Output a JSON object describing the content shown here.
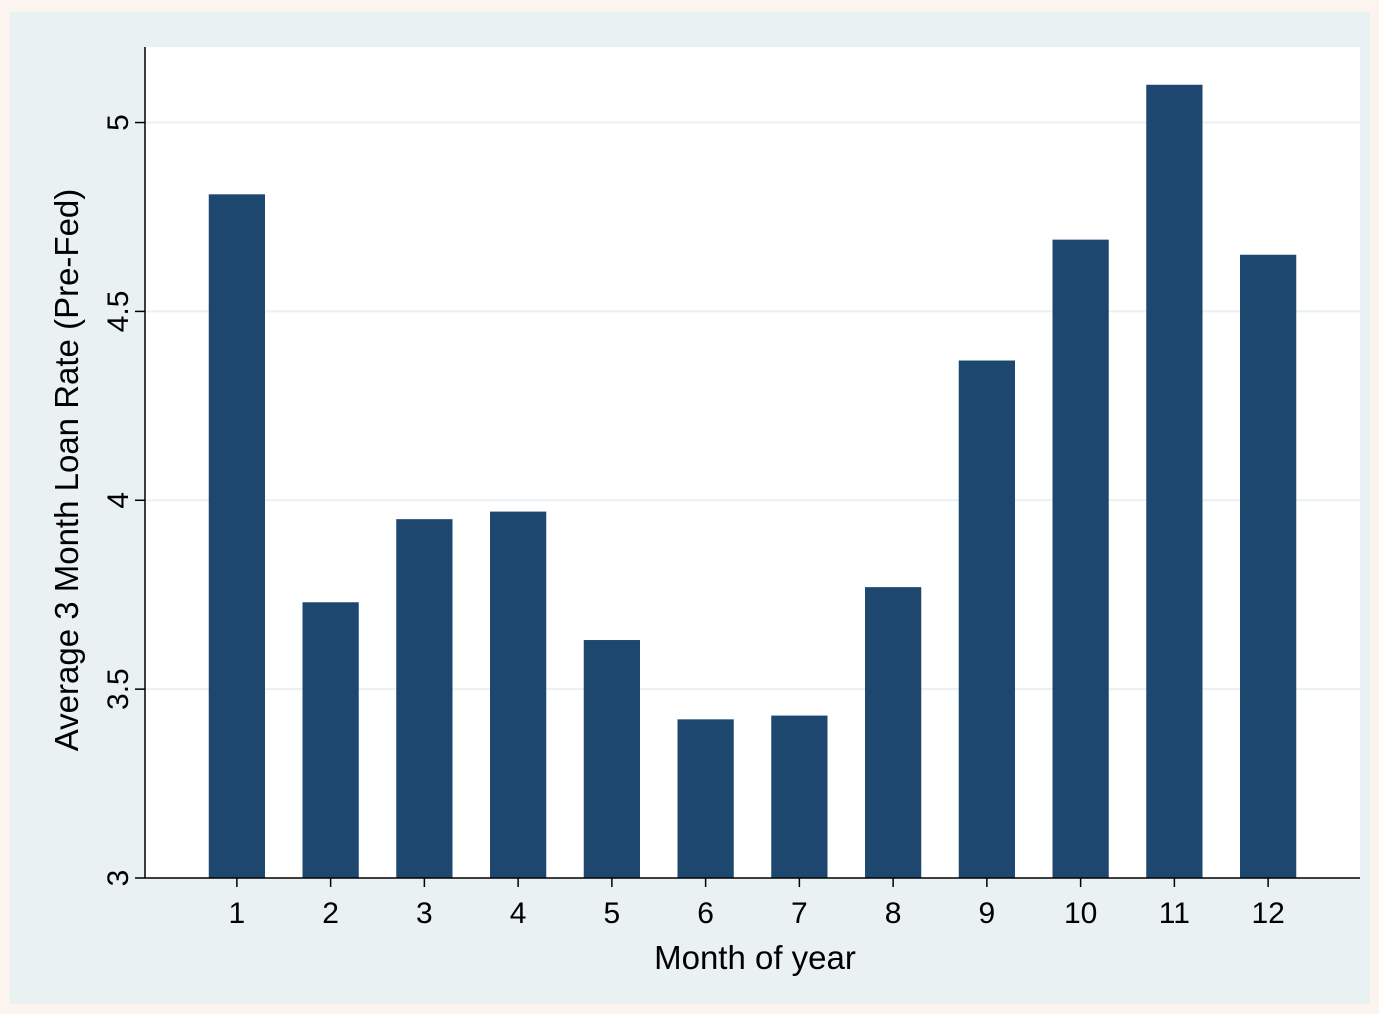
{
  "chart_data": {
    "type": "bar",
    "title": "",
    "xlabel": "Month of year",
    "ylabel": "Average 3 Month Loan Rate (Pre-Fed)",
    "categories": [
      "1",
      "2",
      "3",
      "4",
      "5",
      "6",
      "7",
      "8",
      "9",
      "10",
      "11",
      "12"
    ],
    "values": [
      4.81,
      3.73,
      3.95,
      3.97,
      3.63,
      3.42,
      3.43,
      3.77,
      4.37,
      4.69,
      5.1,
      4.65
    ],
    "ylim": [
      3,
      5.2
    ],
    "yticks": [
      3,
      3.5,
      4,
      4.5,
      5
    ],
    "ytick_labels": [
      "3",
      "3.5",
      "4",
      "4.5",
      "5"
    ],
    "grid": true,
    "colors": {
      "bar": "#1d476e",
      "plot_background": "#ffffff",
      "outer_background": "#eaf1f3",
      "gridline": "#eaf1f3"
    }
  }
}
